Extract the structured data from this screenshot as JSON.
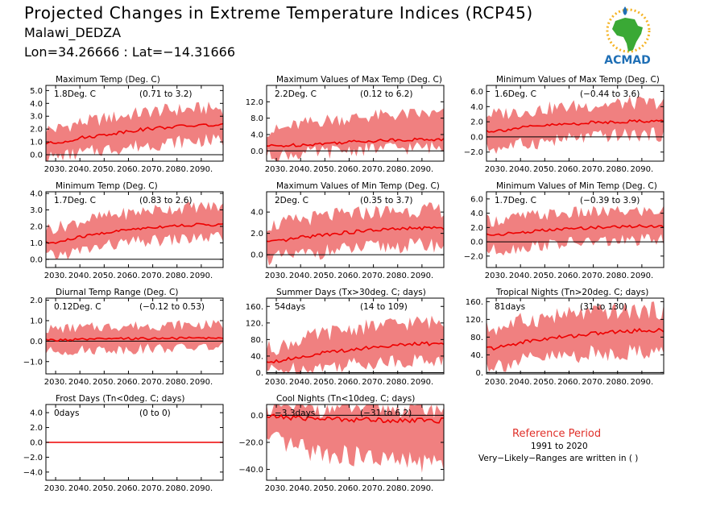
{
  "header": {
    "title": "Projected Changes in Extreme Temperature Indices (RCP45)",
    "station": "Malawi_DEDZA",
    "coords": "Lon=34.26666 : Lat=−14.31666"
  },
  "logo": {
    "text": "ACMAD",
    "icon": "africa-map-sun-drop-logo",
    "colors": {
      "africa": "#3aa935",
      "sun": "#f5b324",
      "drop": "#1f6fb5",
      "text": "#1f6fb5"
    }
  },
  "reference": {
    "title": "Reference Period",
    "years": "1991 to 2020",
    "note": "Very−Likely−Ranges are written in ( )"
  },
  "colors": {
    "band": "#f08080",
    "mean": "#ee0000",
    "zero_line": "#000000"
  },
  "chart_data": [
    {
      "type": "area",
      "title": "Maximum Temp (Deg. C)",
      "mean_label": "1.8Deg. C",
      "range_label": "(0.71 to 3.2)",
      "x": [
        2030,
        2040,
        2050,
        2060,
        2070,
        2080,
        2090
      ],
      "xlim": [
        2026,
        2099
      ],
      "ylim": [
        -0.5,
        5.4
      ],
      "yticks": [
        0.0,
        1.0,
        2.0,
        3.0,
        4.0,
        5.0
      ],
      "mean": [
        0.9,
        1.3,
        1.55,
        1.85,
        2.05,
        2.2,
        2.3
      ],
      "lower": [
        -0.2,
        0.1,
        0.4,
        0.6,
        0.8,
        1.0,
        1.1
      ],
      "upper": [
        2.0,
        2.5,
        2.8,
        3.1,
        3.4,
        3.5,
        3.6
      ]
    },
    {
      "type": "area",
      "title": "Maximum Values of Max Temp (Deg. C)",
      "mean_label": "2.2Deg. C",
      "range_label": "(0.12 to 6.2)",
      "x": [
        2030,
        2040,
        2050,
        2060,
        2070,
        2080,
        2090
      ],
      "xlim": [
        2026,
        2099
      ],
      "ylim": [
        -2.5,
        16.0
      ],
      "yticks": [
        0.0,
        4.0,
        8.0,
        12.0
      ],
      "mean": [
        1.2,
        1.5,
        1.8,
        2.2,
        2.5,
        2.7,
        2.8
      ],
      "lower": [
        -1.0,
        -0.7,
        -0.3,
        0.2,
        0.5,
        0.7,
        0.8
      ],
      "upper": [
        5.0,
        6.5,
        7.5,
        8.0,
        8.5,
        8.8,
        9.0
      ]
    },
    {
      "type": "area",
      "title": "Minimum Values of Max Temp (Deg. C)",
      "mean_label": "1.6Deg. C",
      "range_label": "(−0.44 to 3.6)",
      "x": [
        2030,
        2040,
        2050,
        2060,
        2070,
        2080,
        2090
      ],
      "xlim": [
        2026,
        2099
      ],
      "ylim": [
        -3.2,
        6.8
      ],
      "yticks": [
        -2.0,
        0.0,
        2.0,
        4.0,
        6.0
      ],
      "mean": [
        0.8,
        1.2,
        1.5,
        1.7,
        1.9,
        2.0,
        2.1
      ],
      "lower": [
        -1.5,
        -1.0,
        -0.6,
        -0.3,
        0.0,
        0.2,
        0.3
      ],
      "upper": [
        3.0,
        3.4,
        3.7,
        4.0,
        4.2,
        4.4,
        4.5
      ]
    },
    {
      "type": "area",
      "title": "Minimum Temp (Deg. C)",
      "mean_label": "1.7Deg. C",
      "range_label": "(0.83 to 2.6)",
      "x": [
        2030,
        2040,
        2050,
        2060,
        2070,
        2080,
        2090
      ],
      "xlim": [
        2026,
        2099
      ],
      "ylim": [
        -0.5,
        4.1
      ],
      "yticks": [
        0.0,
        1.0,
        2.0,
        3.0,
        4.0
      ],
      "mean": [
        1.0,
        1.35,
        1.6,
        1.8,
        1.95,
        2.05,
        2.1
      ],
      "lower": [
        0.2,
        0.5,
        0.8,
        1.0,
        1.1,
        1.2,
        1.3
      ],
      "upper": [
        1.9,
        2.3,
        2.6,
        2.8,
        3.0,
        3.1,
        3.2
      ]
    },
    {
      "type": "area",
      "title": "Maximum Values of Min Temp (Deg. C)",
      "mean_label": "2Deg. C",
      "range_label": "(0.35 to 3.7)",
      "x": [
        2030,
        2040,
        2050,
        2060,
        2070,
        2080,
        2090
      ],
      "xlim": [
        2026,
        2099
      ],
      "ylim": [
        -1.2,
        5.9
      ],
      "yticks": [
        0.0,
        2.0,
        4.0
      ],
      "mean": [
        1.2,
        1.6,
        1.9,
        2.1,
        2.3,
        2.4,
        2.5
      ],
      "lower": [
        -0.3,
        0.0,
        0.3,
        0.5,
        0.7,
        0.8,
        0.9
      ],
      "upper": [
        2.8,
        3.3,
        3.6,
        3.8,
        4.0,
        4.1,
        4.2
      ]
    },
    {
      "type": "area",
      "title": "Minimum Values of Min Temp (Deg. C)",
      "mean_label": "1.7Deg. C",
      "range_label": "(−0.39 to 3.9)",
      "x": [
        2030,
        2040,
        2050,
        2060,
        2070,
        2080,
        2090
      ],
      "xlim": [
        2026,
        2099
      ],
      "ylim": [
        -3.6,
        7.0
      ],
      "yticks": [
        -2.0,
        0.0,
        2.0,
        4.0,
        6.0
      ],
      "mean": [
        1.0,
        1.3,
        1.6,
        1.8,
        2.0,
        2.1,
        2.2
      ],
      "lower": [
        -1.2,
        -0.8,
        -0.4,
        -0.2,
        0.0,
        0.1,
        0.2
      ],
      "upper": [
        3.0,
        3.5,
        3.8,
        4.0,
        4.1,
        4.2,
        4.3
      ]
    },
    {
      "type": "area",
      "title": "Diurnal Temp Range (Deg. C)",
      "mean_label": "0.12Deg. C",
      "range_label": "(−0.12 to 0.53)",
      "x": [
        2030,
        2040,
        2050,
        2060,
        2070,
        2080,
        2090
      ],
      "xlim": [
        2026,
        2099
      ],
      "ylim": [
        -1.6,
        2.1
      ],
      "yticks": [
        -1.0,
        0.0,
        1.0,
        2.0
      ],
      "mean": [
        0.05,
        0.08,
        0.1,
        0.12,
        0.13,
        0.14,
        0.15
      ],
      "lower": [
        -0.5,
        -0.45,
        -0.4,
        -0.4,
        -0.35,
        -0.35,
        -0.3
      ],
      "upper": [
        0.6,
        0.65,
        0.7,
        0.75,
        0.75,
        0.8,
        0.8
      ]
    },
    {
      "type": "area",
      "title": "Summer Days (Tx>30deg. C; days)",
      "mean_label": "54days",
      "range_label": "(14 to 109)",
      "x": [
        2030,
        2040,
        2050,
        2060,
        2070,
        2080,
        2090
      ],
      "xlim": [
        2026,
        2099
      ],
      "ylim": [
        -3,
        180
      ],
      "yticks": [
        0,
        40,
        80,
        120,
        160
      ],
      "mean": [
        28,
        38,
        48,
        55,
        62,
        66,
        70
      ],
      "lower": [
        5,
        10,
        15,
        20,
        25,
        28,
        30
      ],
      "upper": [
        60,
        80,
        95,
        105,
        112,
        118,
        122
      ]
    },
    {
      "type": "area",
      "title": "Tropical Nights (Tn>20deg. C; days)",
      "mean_label": "81days",
      "range_label": "(31 to 130)",
      "x": [
        2030,
        2040,
        2050,
        2060,
        2070,
        2080,
        2090
      ],
      "xlim": [
        2026,
        2099
      ],
      "ylim": [
        -3,
        168
      ],
      "yticks": [
        0,
        40,
        80,
        120,
        160
      ],
      "mean": [
        55,
        68,
        76,
        82,
        88,
        92,
        95
      ],
      "lower": [
        18,
        25,
        32,
        38,
        42,
        45,
        48
      ],
      "upper": [
        100,
        115,
        125,
        130,
        135,
        138,
        140
      ]
    },
    {
      "type": "area",
      "title": "Frost Days (Tn<0deg. C; days)",
      "mean_label": "0days",
      "range_label": "(0 to 0)",
      "x": [
        2030,
        2040,
        2050,
        2060,
        2070,
        2080,
        2090
      ],
      "xlim": [
        2026,
        2099
      ],
      "ylim": [
        -5.1,
        5.1
      ],
      "yticks": [
        -4.0,
        -2.0,
        0.0,
        2.0,
        4.0
      ],
      "mean": [
        0,
        0,
        0,
        0,
        0,
        0,
        0
      ],
      "lower": [
        0,
        0,
        0,
        0,
        0,
        0,
        0
      ],
      "upper": [
        0,
        0,
        0,
        0,
        0,
        0,
        0
      ]
    },
    {
      "type": "area",
      "title": "Cool Nights (Tn<10deg. C; days)",
      "mean_label": "−3.3days",
      "range_label": "(−31 to 6.2)",
      "x": [
        2030,
        2040,
        2050,
        2060,
        2070,
        2080,
        2090
      ],
      "xlim": [
        2026,
        2099
      ],
      "ylim": [
        -48,
        8
      ],
      "yticks": [
        -40.0,
        -20.0,
        0.0
      ],
      "mean": [
        -1,
        -2,
        -2.5,
        -3,
        -3.3,
        -3.6,
        -3.8
      ],
      "lower": [
        -20,
        -25,
        -28,
        -30,
        -32,
        -34,
        -35
      ],
      "upper": [
        6,
        6,
        6,
        6,
        6,
        6,
        6
      ]
    }
  ]
}
